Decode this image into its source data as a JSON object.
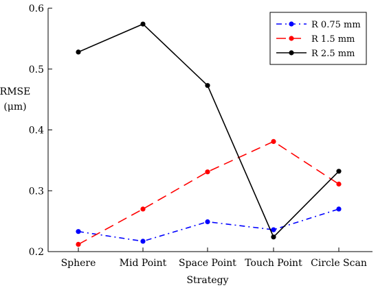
{
  "chart_data": {
    "type": "line",
    "xlabel": "Strategy",
    "ylabel": [
      "RMSE",
      "(μm)"
    ],
    "categories": [
      "Sphere",
      "Mid Point",
      "Space Point",
      "Touch Point",
      "Circle Scan"
    ],
    "ylim": [
      0.2,
      0.6
    ],
    "yticks": [
      "0.2",
      "0.3",
      "0.4",
      "0.5",
      "0.6"
    ],
    "grid": false,
    "legend_position": "top-right",
    "series": [
      {
        "name": "R 0.75 mm",
        "color": "#0000ff",
        "dash": "dash-dot",
        "values": [
          0.233,
          0.217,
          0.249,
          0.236,
          0.27
        ]
      },
      {
        "name": "R 1.5 mm",
        "color": "#ff0000",
        "dash": "dashed",
        "values": [
          0.212,
          0.27,
          0.331,
          0.381,
          0.311
        ]
      },
      {
        "name": "R 2.5 mm",
        "color": "#000000",
        "dash": "solid",
        "values": [
          0.528,
          0.574,
          0.473,
          0.224,
          0.332
        ]
      }
    ]
  }
}
